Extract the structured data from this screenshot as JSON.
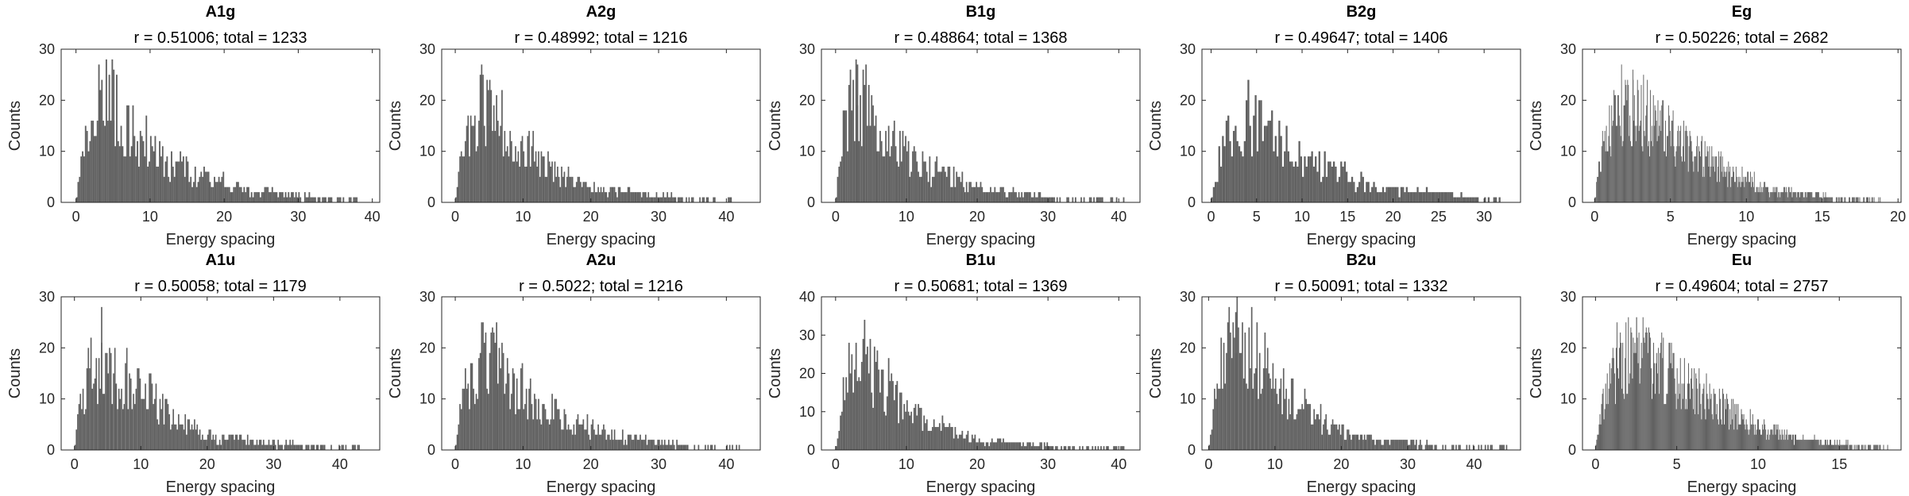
{
  "figure": {
    "background": "#ffffff",
    "bar_color": "#616161",
    "axis_color": "#262626"
  },
  "chart_data": [
    {
      "type": "bar",
      "title": "A1g",
      "subtitle": "r = 0.51006; total = 1233",
      "xlabel": "Energy spacing",
      "ylabel": "Counts",
      "xlim": [
        -2,
        41
      ],
      "ylim": [
        0,
        30
      ],
      "xticks": [
        0,
        10,
        20,
        30,
        40
      ],
      "yticks": [
        0,
        10,
        20,
        30
      ],
      "total": 1233,
      "max_x": 39,
      "peak_x": 5,
      "peak_y": 26,
      "envelope": [
        [
          0,
          0
        ],
        [
          1,
          9
        ],
        [
          2,
          14
        ],
        [
          3,
          19
        ],
        [
          4,
          20
        ],
        [
          5,
          21
        ],
        [
          6,
          17
        ],
        [
          7,
          15
        ],
        [
          8,
          13
        ],
        [
          9,
          11
        ],
        [
          10,
          10
        ],
        [
          12,
          8
        ],
        [
          14,
          7
        ],
        [
          16,
          6
        ],
        [
          18,
          4.5
        ],
        [
          20,
          3.5
        ],
        [
          22,
          2.5
        ],
        [
          25,
          1.8
        ],
        [
          28,
          1.2
        ],
        [
          31,
          0.8
        ],
        [
          35,
          0.5
        ],
        [
          39,
          0.3
        ]
      ]
    },
    {
      "type": "bar",
      "title": "A2g",
      "subtitle": "r = 0.48992; total = 1216",
      "xlabel": "Energy spacing",
      "ylabel": "Counts",
      "xlim": [
        -2,
        45
      ],
      "ylim": [
        0,
        30
      ],
      "xticks": [
        0,
        10,
        20,
        30,
        40
      ],
      "yticks": [
        0,
        10,
        20,
        30
      ],
      "total": 1216,
      "max_x": 42,
      "peak_x": 5,
      "peak_y": 24,
      "envelope": [
        [
          0,
          0
        ],
        [
          1,
          10
        ],
        [
          2,
          14
        ],
        [
          3,
          16
        ],
        [
          4,
          18
        ],
        [
          5,
          18
        ],
        [
          6,
          16
        ],
        [
          7,
          14
        ],
        [
          8,
          12
        ],
        [
          9,
          11
        ],
        [
          10,
          10
        ],
        [
          12,
          8
        ],
        [
          14,
          6
        ],
        [
          16,
          5
        ],
        [
          18,
          4
        ],
        [
          20,
          3
        ],
        [
          23,
          2
        ],
        [
          26,
          1.5
        ],
        [
          30,
          1
        ],
        [
          35,
          0.5
        ],
        [
          42,
          0.3
        ]
      ]
    },
    {
      "type": "bar",
      "title": "B1g",
      "subtitle": "r = 0.48864; total = 1368",
      "xlabel": "Energy spacing",
      "ylabel": "Counts",
      "xlim": [
        -2,
        43
      ],
      "ylim": [
        0,
        30
      ],
      "xticks": [
        0,
        10,
        20,
        30,
        40
      ],
      "yticks": [
        0,
        10,
        20,
        30
      ],
      "total": 1368,
      "max_x": 41,
      "peak_x": 3,
      "peak_y": 27,
      "envelope": [
        [
          0,
          0
        ],
        [
          1,
          12
        ],
        [
          2,
          17
        ],
        [
          3,
          20
        ],
        [
          4,
          20
        ],
        [
          5,
          18
        ],
        [
          6,
          16
        ],
        [
          7,
          14
        ],
        [
          8,
          12
        ],
        [
          9,
          10
        ],
        [
          10,
          9
        ],
        [
          12,
          7
        ],
        [
          14,
          6
        ],
        [
          16,
          5
        ],
        [
          18,
          4
        ],
        [
          20,
          3
        ],
        [
          22,
          2
        ],
        [
          25,
          1.5
        ],
        [
          28,
          1
        ],
        [
          32,
          0.5
        ],
        [
          41,
          0.3
        ]
      ]
    },
    {
      "type": "bar",
      "title": "B2g",
      "subtitle": "r = 0.49647; total = 1406",
      "xlabel": "Energy spacing",
      "ylabel": "Counts",
      "xlim": [
        -1,
        34
      ],
      "ylim": [
        0,
        30
      ],
      "xticks": [
        0,
        5,
        10,
        15,
        20,
        25,
        30
      ],
      "yticks": [
        0,
        10,
        20,
        30
      ],
      "total": 1406,
      "max_x": 32,
      "peak_x": 4,
      "peak_y": 24,
      "envelope": [
        [
          0,
          0
        ],
        [
          1,
          9
        ],
        [
          2,
          13
        ],
        [
          3,
          15
        ],
        [
          4,
          16
        ],
        [
          5,
          15
        ],
        [
          6,
          14
        ],
        [
          7,
          12
        ],
        [
          8,
          11
        ],
        [
          9,
          10
        ],
        [
          10,
          9
        ],
        [
          11,
          8
        ],
        [
          13,
          6
        ],
        [
          15,
          5
        ],
        [
          17,
          3.5
        ],
        [
          19,
          2.5
        ],
        [
          21,
          2
        ],
        [
          24,
          1.5
        ],
        [
          27,
          1
        ],
        [
          30,
          0.5
        ],
        [
          32,
          0.3
        ]
      ]
    },
    {
      "type": "bar",
      "title": "Eg",
      "subtitle": "r = 0.50226; total = 2682",
      "xlabel": "Energy spacing",
      "ylabel": "Counts",
      "xlim": [
        -0.8,
        20.2
      ],
      "ylim": [
        0,
        30
      ],
      "xticks": [
        0,
        5,
        10,
        15,
        20
      ],
      "yticks": [
        0,
        10,
        20,
        30
      ],
      "total": 2682,
      "max_x": 19,
      "peak_x": 2.5,
      "peak_y": 24,
      "envelope": [
        [
          0,
          0
        ],
        [
          0.5,
          10
        ],
        [
          1,
          14
        ],
        [
          1.5,
          16
        ],
        [
          2,
          18
        ],
        [
          2.5,
          18
        ],
        [
          3,
          17
        ],
        [
          3.5,
          16
        ],
        [
          4,
          15
        ],
        [
          5,
          13
        ],
        [
          6,
          11
        ],
        [
          7,
          9
        ],
        [
          8,
          7
        ],
        [
          9,
          5.5
        ],
        [
          10,
          4
        ],
        [
          11,
          3
        ],
        [
          12,
          2.2
        ],
        [
          13,
          1.6
        ],
        [
          14,
          1.2
        ],
        [
          16,
          0.7
        ],
        [
          19,
          0.3
        ]
      ]
    },
    {
      "type": "bar",
      "title": "A1u",
      "subtitle": "r = 0.50058; total = 1179",
      "xlabel": "Energy spacing",
      "ylabel": "Counts",
      "xlim": [
        -2,
        46
      ],
      "ylim": [
        0,
        30
      ],
      "xticks": [
        0,
        10,
        20,
        30,
        40
      ],
      "yticks": [
        0,
        10,
        20,
        30
      ],
      "total": 1179,
      "max_x": 43,
      "peak_x": 4,
      "peak_y": 28,
      "envelope": [
        [
          0,
          0
        ],
        [
          1,
          10
        ],
        [
          2,
          14
        ],
        [
          3,
          16
        ],
        [
          4,
          17
        ],
        [
          5,
          16
        ],
        [
          6,
          15
        ],
        [
          7,
          14
        ],
        [
          8,
          13
        ],
        [
          9,
          12
        ],
        [
          10,
          11
        ],
        [
          12,
          9
        ],
        [
          14,
          7
        ],
        [
          16,
          5
        ],
        [
          18,
          4
        ],
        [
          20,
          3
        ],
        [
          23,
          2
        ],
        [
          26,
          1.5
        ],
        [
          30,
          1
        ],
        [
          35,
          0.5
        ],
        [
          43,
          0.3
        ]
      ]
    },
    {
      "type": "bar",
      "title": "A2u",
      "subtitle": "r = 0.5022; total = 1216",
      "xlabel": "Energy spacing",
      "ylabel": "Counts",
      "xlim": [
        -2,
        45
      ],
      "ylim": [
        0,
        30
      ],
      "xticks": [
        0,
        10,
        20,
        30,
        40
      ],
      "yticks": [
        0,
        10,
        20,
        30
      ],
      "total": 1216,
      "max_x": 42,
      "peak_x": 6,
      "peak_y": 25,
      "envelope": [
        [
          0,
          0
        ],
        [
          1,
          9
        ],
        [
          2,
          13
        ],
        [
          3,
          15
        ],
        [
          4,
          16
        ],
        [
          5,
          17
        ],
        [
          6,
          17
        ],
        [
          7,
          16
        ],
        [
          8,
          15
        ],
        [
          9,
          13
        ],
        [
          10,
          12
        ],
        [
          12,
          10
        ],
        [
          14,
          8
        ],
        [
          16,
          6
        ],
        [
          18,
          5
        ],
        [
          20,
          4
        ],
        [
          23,
          3
        ],
        [
          26,
          2
        ],
        [
          30,
          1
        ],
        [
          35,
          0.5
        ],
        [
          42,
          0.3
        ]
      ]
    },
    {
      "type": "bar",
      "title": "B1u",
      "subtitle": "r = 0.50681; total = 1369",
      "xlabel": "Energy spacing",
      "ylabel": "Counts",
      "xlim": [
        -2,
        43
      ],
      "ylim": [
        0,
        40
      ],
      "xticks": [
        0,
        10,
        20,
        30,
        40
      ],
      "yticks": [
        0,
        10,
        20,
        30,
        40
      ],
      "total": 1369,
      "max_x": 41,
      "peak_x": 4,
      "peak_y": 34,
      "envelope": [
        [
          0,
          0
        ],
        [
          1,
          13
        ],
        [
          2,
          18
        ],
        [
          3,
          21
        ],
        [
          4,
          22
        ],
        [
          5,
          21
        ],
        [
          6,
          18
        ],
        [
          7,
          16
        ],
        [
          8,
          14
        ],
        [
          9,
          12
        ],
        [
          10,
          10
        ],
        [
          12,
          8
        ],
        [
          14,
          6
        ],
        [
          16,
          5
        ],
        [
          18,
          4
        ],
        [
          20,
          3
        ],
        [
          22,
          2
        ],
        [
          25,
          1.5
        ],
        [
          28,
          1
        ],
        [
          33,
          0.5
        ],
        [
          41,
          0.3
        ]
      ]
    },
    {
      "type": "bar",
      "title": "B2u",
      "subtitle": "r = 0.50091; total = 1332",
      "xlabel": "Energy spacing",
      "ylabel": "Counts",
      "xlim": [
        -1,
        47
      ],
      "ylim": [
        0,
        30
      ],
      "xticks": [
        0,
        10,
        20,
        30,
        40
      ],
      "yticks": [
        0,
        10,
        20,
        30
      ],
      "total": 1332,
      "max_x": 45,
      "peak_x": 4,
      "peak_y": 27,
      "envelope": [
        [
          0,
          0
        ],
        [
          1,
          10
        ],
        [
          2,
          17
        ],
        [
          3,
          20
        ],
        [
          4,
          22
        ],
        [
          5,
          22
        ],
        [
          6,
          21
        ],
        [
          7,
          19
        ],
        [
          8,
          17
        ],
        [
          9,
          15
        ],
        [
          10,
          13
        ],
        [
          12,
          11
        ],
        [
          14,
          9
        ],
        [
          16,
          7
        ],
        [
          18,
          5
        ],
        [
          20,
          3.5
        ],
        [
          23,
          2.5
        ],
        [
          26,
          1.5
        ],
        [
          30,
          1
        ],
        [
          36,
          0.5
        ],
        [
          45,
          0.3
        ]
      ]
    },
    {
      "type": "bar",
      "title": "Eu",
      "subtitle": "r = 0.49604; total = 2757",
      "xlabel": "Energy spacing",
      "ylabel": "Counts",
      "xlim": [
        -0.8,
        18.8
      ],
      "ylim": [
        0,
        30
      ],
      "xticks": [
        0,
        5,
        10,
        15
      ],
      "yticks": [
        0,
        10,
        20,
        30
      ],
      "total": 2757,
      "max_x": 18,
      "peak_x": 2.5,
      "peak_y": 26,
      "envelope": [
        [
          0,
          0
        ],
        [
          0.5,
          10
        ],
        [
          1,
          14
        ],
        [
          1.5,
          17
        ],
        [
          2,
          18
        ],
        [
          2.5,
          19
        ],
        [
          3,
          18
        ],
        [
          3.5,
          17
        ],
        [
          4,
          16
        ],
        [
          5,
          14
        ],
        [
          6,
          12
        ],
        [
          7,
          10
        ],
        [
          8,
          8
        ],
        [
          9,
          6
        ],
        [
          10,
          4.5
        ],
        [
          11,
          3.5
        ],
        [
          12,
          2.5
        ],
        [
          13,
          1.8
        ],
        [
          14,
          1.2
        ],
        [
          16,
          0.6
        ],
        [
          18,
          0.3
        ]
      ]
    }
  ]
}
